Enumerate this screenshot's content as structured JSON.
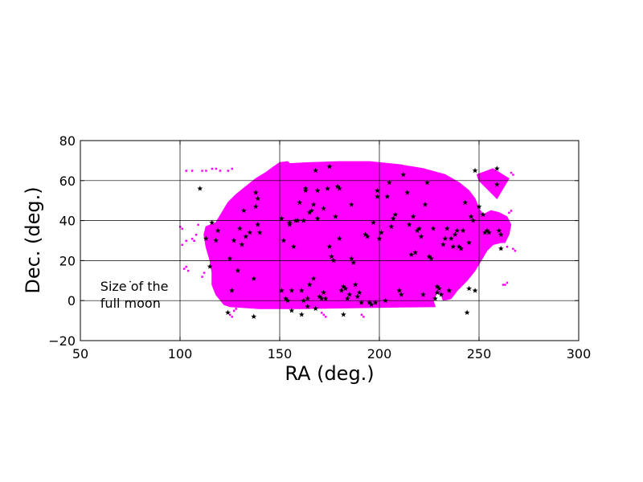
{
  "chart_data": {
    "type": "scatter",
    "title": "",
    "xlabel": "RA (deg.)",
    "ylabel": "Dec. (deg.)",
    "xlim": [
      50,
      300
    ],
    "ylim": [
      -20,
      80
    ],
    "xticks": [
      50,
      100,
      150,
      200,
      250,
      300
    ],
    "yticks": [
      -20,
      0,
      20,
      40,
      60,
      80
    ],
    "grid": true,
    "colors": {
      "footprint": "#ff00ff",
      "stars": "#000000",
      "grid": "#000000"
    },
    "annotation": {
      "lines": [
        "Size of the",
        "full moon"
      ],
      "text_at": [
        60,
        5
      ],
      "moon_center": [
        75,
        9.5
      ],
      "moon_diameter_deg": 0.5
    },
    "footprint": {
      "main_polygon": [
        [
          118,
          39
        ],
        [
          121,
          44
        ],
        [
          124,
          49
        ],
        [
          128,
          53
        ],
        [
          133,
          57
        ],
        [
          138,
          61
        ],
        [
          143,
          64
        ],
        [
          147,
          67
        ],
        [
          150,
          69
        ],
        [
          154,
          69.5
        ],
        [
          155,
          68.5
        ],
        [
          165,
          69
        ],
        [
          180,
          69.5
        ],
        [
          195,
          69.5
        ],
        [
          210,
          68
        ],
        [
          222,
          66
        ],
        [
          233,
          63
        ],
        [
          240,
          59
        ],
        [
          245,
          55
        ],
        [
          248,
          51
        ],
        [
          250,
          46
        ],
        [
          252,
          43
        ],
        [
          256,
          45
        ],
        [
          260,
          44
        ],
        [
          264,
          42
        ],
        [
          266,
          38
        ],
        [
          265,
          33
        ],
        [
          263,
          29
        ],
        [
          261,
          29
        ],
        [
          257,
          28
        ],
        [
          254,
          25
        ],
        [
          251,
          20
        ],
        [
          248,
          15
        ],
        [
          244,
          10
        ],
        [
          239,
          5
        ],
        [
          236,
          1
        ],
        [
          232,
          0
        ],
        [
          231,
          3
        ],
        [
          229,
          4
        ],
        [
          227,
          0
        ],
        [
          228,
          -3
        ],
        [
          160,
          -4
        ],
        [
          140,
          -4
        ],
        [
          125,
          -3
        ],
        [
          122,
          -2
        ],
        [
          118,
          3
        ],
        [
          116,
          8
        ],
        [
          116,
          14
        ],
        [
          115,
          20
        ],
        [
          113,
          27
        ],
        [
          112,
          33
        ],
        [
          113,
          37
        ]
      ],
      "satellite_polygon": [
        [
          249,
          63
        ],
        [
          257,
          66
        ],
        [
          265,
          61
        ],
        [
          259,
          51
        ],
        [
          250,
          60
        ]
      ],
      "scatter_points": [
        [
          103,
          65
        ],
        [
          106,
          65
        ],
        [
          111,
          65
        ],
        [
          113,
          65
        ],
        [
          116,
          66
        ],
        [
          118,
          66
        ],
        [
          120,
          65
        ],
        [
          124,
          65
        ],
        [
          126,
          66
        ],
        [
          100,
          37
        ],
        [
          101,
          36
        ],
        [
          103,
          30
        ],
        [
          101,
          28
        ],
        [
          106,
          31
        ],
        [
          108,
          33
        ],
        [
          107,
          30
        ],
        [
          109,
          38
        ],
        [
          103,
          17
        ],
        [
          102,
          16
        ],
        [
          104,
          15
        ],
        [
          112,
          14
        ],
        [
          111,
          12
        ],
        [
          127,
          -5
        ],
        [
          128,
          -4
        ],
        [
          126,
          -8
        ],
        [
          125,
          -7
        ],
        [
          172,
          -7
        ],
        [
          173,
          -8
        ],
        [
          171,
          -6
        ],
        [
          191,
          -7
        ],
        [
          192,
          -8
        ],
        [
          263,
          8
        ],
        [
          264,
          9
        ],
        [
          262,
          8
        ],
        [
          265,
          44
        ],
        [
          266,
          45
        ],
        [
          267,
          26
        ],
        [
          268,
          25
        ],
        [
          264,
          27
        ],
        [
          267,
          63
        ],
        [
          266,
          64
        ]
      ]
    },
    "stars": [
      [
        110,
        56
      ],
      [
        113,
        31
      ],
      [
        115,
        17
      ],
      [
        116,
        39
      ],
      [
        118,
        30
      ],
      [
        119,
        35
      ],
      [
        124,
        -6
      ],
      [
        125,
        21
      ],
      [
        126,
        5
      ],
      [
        127,
        30
      ],
      [
        129,
        15
      ],
      [
        130,
        36
      ],
      [
        131,
        28
      ],
      [
        132,
        45
      ],
      [
        133,
        32
      ],
      [
        135,
        34
      ],
      [
        137,
        11
      ],
      [
        137,
        -8
      ],
      [
        138,
        54
      ],
      [
        138,
        47
      ],
      [
        139,
        51
      ],
      [
        139,
        38
      ],
      [
        140,
        34
      ],
      [
        151,
        41
      ],
      [
        151,
        5
      ],
      [
        152,
        30
      ],
      [
        153,
        1
      ],
      [
        154,
        0
      ],
      [
        155,
        39
      ],
      [
        155,
        38
      ],
      [
        156,
        5
      ],
      [
        156,
        -5
      ],
      [
        157,
        27
      ],
      [
        158,
        40
      ],
      [
        159,
        40
      ],
      [
        160,
        49
      ],
      [
        161,
        5
      ],
      [
        161,
        -7
      ],
      [
        162,
        40
      ],
      [
        162,
        0
      ],
      [
        163,
        56
      ],
      [
        163,
        55
      ],
      [
        164,
        -3
      ],
      [
        164,
        1
      ],
      [
        165,
        44
      ],
      [
        165,
        8
      ],
      [
        166,
        45
      ],
      [
        167,
        48
      ],
      [
        167,
        11
      ],
      [
        168,
        -4
      ],
      [
        168,
        65
      ],
      [
        169,
        41
      ],
      [
        169,
        55
      ],
      [
        170,
        2
      ],
      [
        171,
        1
      ],
      [
        172,
        4
      ],
      [
        172,
        46
      ],
      [
        173,
        1
      ],
      [
        174,
        56
      ],
      [
        175,
        67
      ],
      [
        175,
        27
      ],
      [
        176,
        22
      ],
      [
        177,
        20
      ],
      [
        178,
        42
      ],
      [
        179,
        57
      ],
      [
        180,
        56
      ],
      [
        180,
        31
      ],
      [
        181,
        5
      ],
      [
        182,
        -7
      ],
      [
        182,
        7
      ],
      [
        183,
        6
      ],
      [
        184,
        1
      ],
      [
        185,
        3
      ],
      [
        186,
        48
      ],
      [
        186,
        21
      ],
      [
        187,
        19
      ],
      [
        188,
        8
      ],
      [
        189,
        2
      ],
      [
        190,
        4
      ],
      [
        191,
        -1
      ],
      [
        193,
        33
      ],
      [
        194,
        32
      ],
      [
        195,
        -1
      ],
      [
        196,
        -2
      ],
      [
        197,
        39
      ],
      [
        198,
        -1
      ],
      [
        199,
        55
      ],
      [
        199,
        52
      ],
      [
        200,
        31
      ],
      [
        201,
        34
      ],
      [
        203,
        0
      ],
      [
        204,
        52
      ],
      [
        205,
        59
      ],
      [
        206,
        37
      ],
      [
        207,
        41
      ],
      [
        208,
        43
      ],
      [
        210,
        5
      ],
      [
        211,
        3
      ],
      [
        212,
        63
      ],
      [
        214,
        54
      ],
      [
        215,
        38
      ],
      [
        216,
        23
      ],
      [
        217,
        42
      ],
      [
        218,
        24
      ],
      [
        219,
        35
      ],
      [
        220,
        36
      ],
      [
        221,
        32
      ],
      [
        222,
        3
      ],
      [
        223,
        48
      ],
      [
        224,
        59
      ],
      [
        225,
        22
      ],
      [
        226,
        21
      ],
      [
        227,
        36
      ],
      [
        228,
        1
      ],
      [
        229,
        7
      ],
      [
        229,
        4
      ],
      [
        230,
        6
      ],
      [
        231,
        3
      ],
      [
        232,
        28
      ],
      [
        233,
        31
      ],
      [
        234,
        36
      ],
      [
        235,
        5
      ],
      [
        236,
        31
      ],
      [
        237,
        27
      ],
      [
        238,
        33
      ],
      [
        239,
        35
      ],
      [
        240,
        27
      ],
      [
        241,
        26
      ],
      [
        242,
        35
      ],
      [
        243,
        49
      ],
      [
        244,
        -6
      ],
      [
        245,
        29
      ],
      [
        245,
        6
      ],
      [
        246,
        42
      ],
      [
        247,
        40
      ],
      [
        248,
        65
      ],
      [
        248,
        5
      ],
      [
        250,
        47
      ],
      [
        252,
        43
      ],
      [
        253,
        34
      ],
      [
        254,
        35
      ],
      [
        255,
        34
      ],
      [
        259,
        58
      ],
      [
        259,
        66
      ],
      [
        260,
        35
      ],
      [
        261,
        33
      ],
      [
        261,
        26
      ]
    ]
  }
}
